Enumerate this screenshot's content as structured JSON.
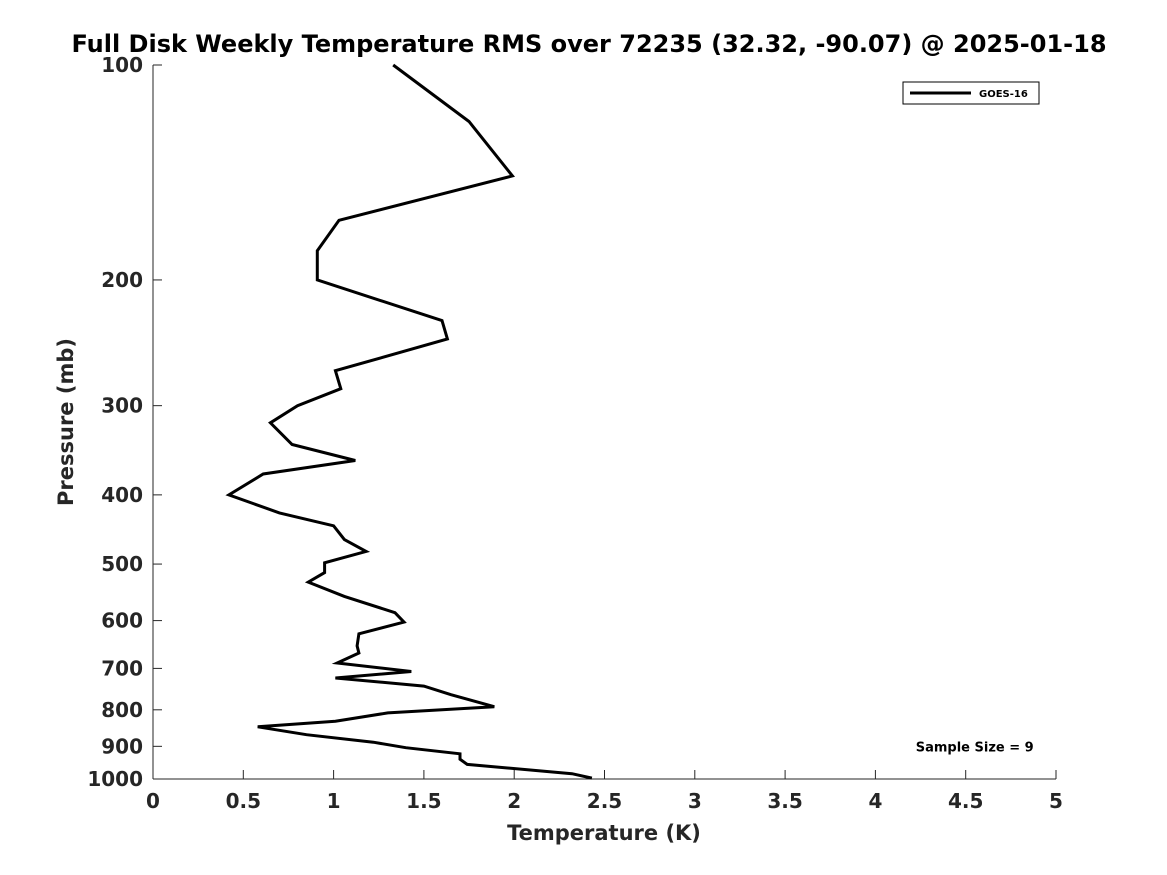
{
  "chart_data": {
    "type": "line",
    "title": "Full Disk Weekly Temperature RMS over 72235 (32.32, -90.07) @ 2025-01-18",
    "xlabel": "Temperature (K)",
    "ylabel": "Pressure (mb)",
    "xlim": [
      0,
      5
    ],
    "ylim": [
      100,
      1000
    ],
    "yscale": "log",
    "y_reversed": true,
    "x_ticks": [
      0,
      0.5,
      1,
      1.5,
      2,
      2.5,
      3,
      3.5,
      4,
      4.5,
      5
    ],
    "x_tick_labels": [
      "0",
      "0.5",
      "1",
      "1.5",
      "2",
      "2.5",
      "3",
      "3.5",
      "4",
      "4.5",
      "5"
    ],
    "y_ticks": [
      100,
      200,
      300,
      400,
      500,
      600,
      700,
      800,
      900,
      1000
    ],
    "y_tick_labels": [
      "100",
      "200",
      "300",
      "400",
      "500",
      "600",
      "700",
      "800",
      "900",
      "1000"
    ],
    "grid": false,
    "legend_position": "top-right",
    "series": [
      {
        "name": "GOES-16",
        "color": "#000000",
        "x": [
          1.33,
          1.75,
          1.99,
          1.03,
          0.91,
          0.91,
          1.6,
          1.63,
          1.01,
          1.04,
          0.8,
          0.65,
          0.77,
          1.12,
          0.61,
          0.42,
          0.7,
          1.0,
          1.06,
          1.18,
          0.95,
          0.95,
          0.86,
          1.06,
          1.34,
          1.39,
          1.14,
          1.13,
          1.14,
          1.02,
          1.43,
          1.01,
          1.5,
          1.65,
          1.89,
          1.3,
          1.01,
          0.58,
          0.85,
          1.22,
          1.4,
          1.7,
          1.7,
          1.74,
          2.32,
          2.43
        ],
        "y": [
          100,
          120,
          143,
          165,
          182,
          200,
          228,
          242,
          268,
          284,
          300,
          317,
          340,
          358,
          374,
          400,
          424,
          442,
          462,
          480,
          498,
          514,
          530,
          555,
          585,
          603,
          626,
          651,
          666,
          688,
          707,
          722,
          741,
          762,
          792,
          808,
          830,
          845,
          867,
          888,
          904,
          922,
          938,
          954,
          983,
          997
        ]
      }
    ],
    "annotations": [
      {
        "text": "Sample Size = 9",
        "x": 4.55,
        "y": 900
      }
    ]
  }
}
